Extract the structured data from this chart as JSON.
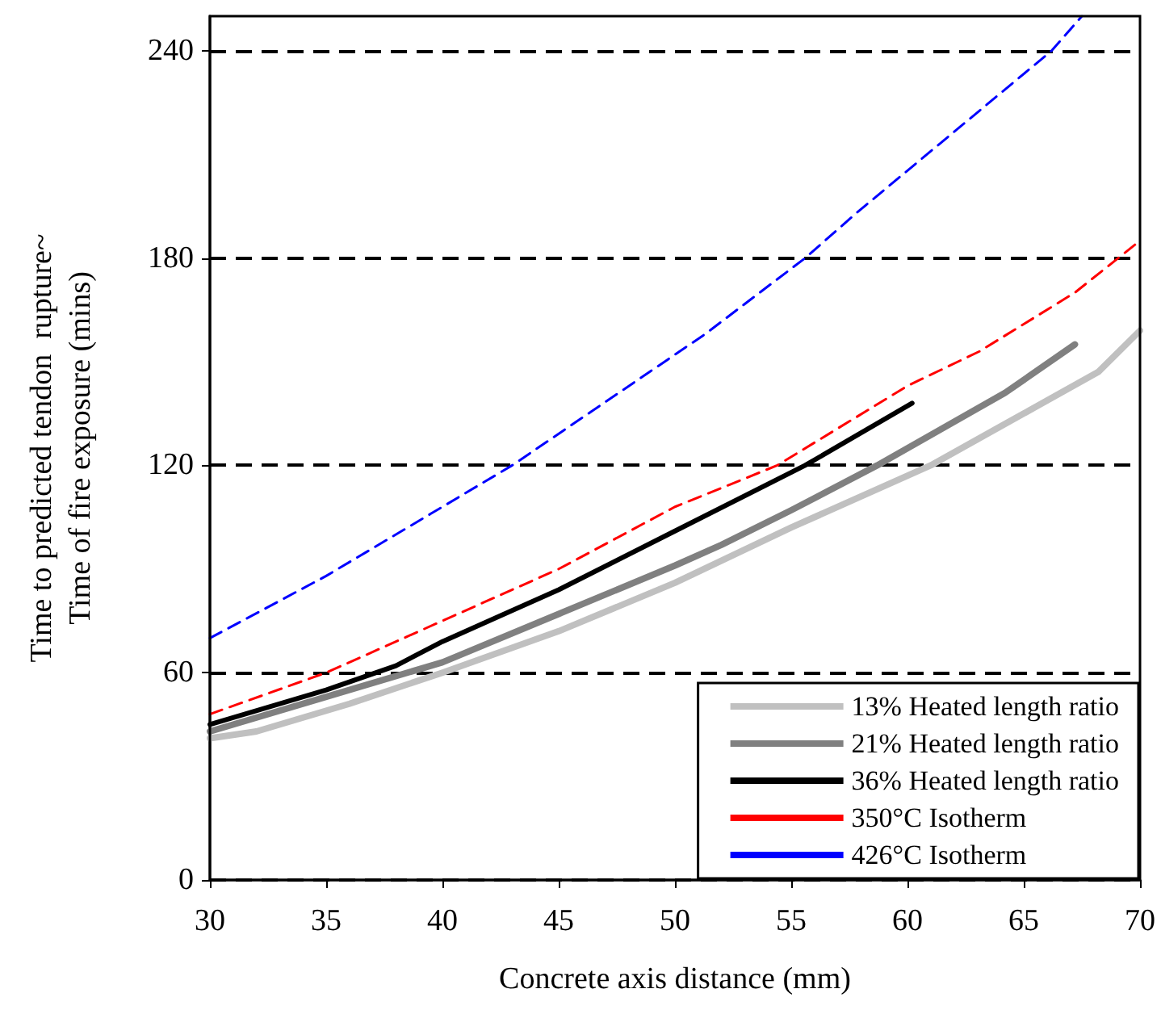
{
  "chart_data": {
    "type": "line",
    "xlabel": "Concrete axis distance (mm)",
    "ylabel": "Time to predicted tendon  rupture~\nTime of fire exposure (mins)",
    "xlim": [
      30,
      70
    ],
    "xticks": [
      30,
      35,
      40,
      45,
      50,
      55,
      60,
      65,
      70
    ],
    "ylim": [
      0,
      250
    ],
    "yticks": [
      0,
      60,
      120,
      180,
      240
    ],
    "grid": "y",
    "legend": "bottom right",
    "marker": "none",
    "series": [
      {
        "name": "13% Heated length ratio",
        "color": "#c0c0c0",
        "line_style": "solid",
        "x": [
          30,
          32,
          36,
          40,
          45,
          50,
          55,
          61,
          64.2,
          68.2,
          70
        ],
        "values": [
          41,
          43,
          51,
          60,
          72,
          86,
          102,
          120,
          132,
          147,
          159
        ]
      },
      {
        "name": "21% Heated length ratio",
        "color": "#808080",
        "line_style": "solid",
        "x": [
          30,
          35,
          40,
          45,
          50,
          52,
          55,
          58.7,
          64.2,
          67.2
        ],
        "values": [
          43,
          53,
          63,
          77,
          91,
          97,
          107,
          120,
          141,
          155
        ]
      },
      {
        "name": "36% Heated length ratio",
        "color": "#000000",
        "line_style": "solid",
        "x": [
          30,
          35,
          38,
          40,
          45,
          50,
          55.6,
          60.2
        ],
        "values": [
          45,
          55,
          62,
          69,
          84,
          101,
          120,
          138
        ]
      },
      {
        "name": "350°C Isotherm",
        "color": "#ff0000",
        "line_style": "dashed",
        "x": [
          30,
          35,
          40,
          45,
          50,
          54.4,
          60,
          63.1,
          67.2,
          70
        ],
        "values": [
          48,
          60,
          75,
          90,
          108,
          120,
          143,
          153,
          170,
          185
        ]
      },
      {
        "name": "426°C Isotherm",
        "color": "#0000ff",
        "line_style": "dashed",
        "x": [
          30,
          35,
          39.5,
          43,
          51.3,
          55.6,
          57.8,
          66.2,
          67.5
        ],
        "values": [
          70,
          88,
          106,
          120,
          158,
          180,
          193,
          240,
          250
        ]
      }
    ]
  }
}
